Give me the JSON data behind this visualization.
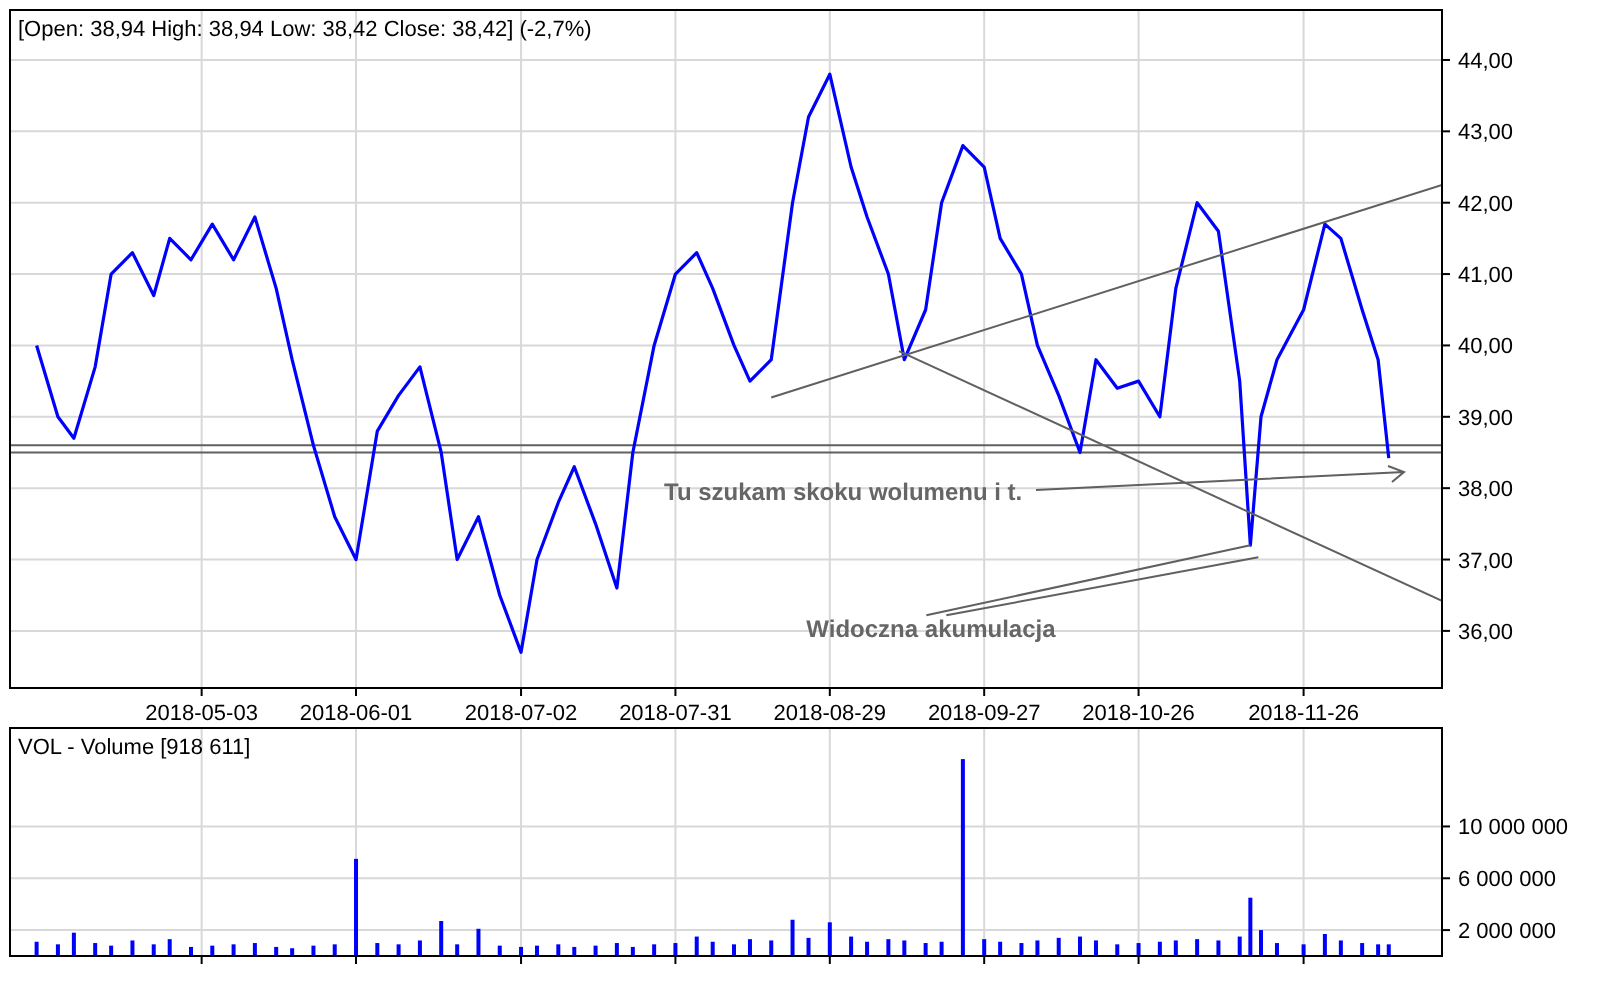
{
  "chart_data": [
    {
      "type": "line",
      "title": "[Open: 38,94  High: 38,94  Low: 38,42  Close: 38,42] (-2,7%)",
      "xlim": [
        "2018-03-28",
        "2018-12-22"
      ],
      "ylim": [
        35.2,
        44.7
      ],
      "xticks": [
        "2018-05-03",
        "2018-06-01",
        "2018-07-02",
        "2018-07-31",
        "2018-08-29",
        "2018-09-27",
        "2018-10-26",
        "2018-11-26"
      ],
      "yticks": [
        {
          "value": 36,
          "label": "36,00"
        },
        {
          "value": 37,
          "label": "37,00"
        },
        {
          "value": 38,
          "label": "38,00"
        },
        {
          "value": 39,
          "label": "39,00"
        },
        {
          "value": 40,
          "label": "40,00"
        },
        {
          "value": 41,
          "label": "41,00"
        },
        {
          "value": 42,
          "label": "42,00"
        },
        {
          "value": 43,
          "label": "43,00"
        },
        {
          "value": 44,
          "label": "44,00"
        }
      ],
      "grid": true,
      "series": [
        {
          "color": "#0000ff",
          "x": [
            "2018-04-02",
            "2018-04-06",
            "2018-04-09",
            "2018-04-13",
            "2018-04-16",
            "2018-04-20",
            "2018-04-24",
            "2018-04-27",
            "2018-05-01",
            "2018-05-05",
            "2018-05-09",
            "2018-05-13",
            "2018-05-17",
            "2018-05-20",
            "2018-05-24",
            "2018-05-28",
            "2018-06-01",
            "2018-06-05",
            "2018-06-09",
            "2018-06-13",
            "2018-06-17",
            "2018-06-20",
            "2018-06-24",
            "2018-06-28",
            "2018-07-02",
            "2018-07-05",
            "2018-07-09",
            "2018-07-12",
            "2018-07-16",
            "2018-07-20",
            "2018-07-23",
            "2018-07-27",
            "2018-07-31",
            "2018-08-04",
            "2018-08-07",
            "2018-08-11",
            "2018-08-14",
            "2018-08-18",
            "2018-08-22",
            "2018-08-25",
            "2018-08-29",
            "2018-09-02",
            "2018-09-05",
            "2018-09-09",
            "2018-09-12",
            "2018-09-16",
            "2018-09-19",
            "2018-09-23",
            "2018-09-27",
            "2018-09-30",
            "2018-10-04",
            "2018-10-07",
            "2018-10-11",
            "2018-10-15",
            "2018-10-18",
            "2018-10-22",
            "2018-10-26",
            "2018-10-30",
            "2018-11-02",
            "2018-11-06",
            "2018-11-10",
            "2018-11-14",
            "2018-11-16",
            "2018-11-18",
            "2018-11-21",
            "2018-11-26",
            "2018-11-30",
            "2018-12-03",
            "2018-12-07",
            "2018-12-10",
            "2018-12-12"
          ],
          "values": [
            40.0,
            39.0,
            38.7,
            39.7,
            41.0,
            41.3,
            40.7,
            41.5,
            41.2,
            41.7,
            41.2,
            41.8,
            40.8,
            39.8,
            38.6,
            37.6,
            37.0,
            38.8,
            39.3,
            39.7,
            38.5,
            37.0,
            37.6,
            36.5,
            35.7,
            37.0,
            37.8,
            38.3,
            37.5,
            36.6,
            38.5,
            40.0,
            41.0,
            41.3,
            40.8,
            40.0,
            39.5,
            39.8,
            42.0,
            43.2,
            43.8,
            42.5,
            41.8,
            41.0,
            39.8,
            40.5,
            42.0,
            42.8,
            42.5,
            41.5,
            41.0,
            40.0,
            39.3,
            38.5,
            39.8,
            39.4,
            39.5,
            39.0,
            40.8,
            42.0,
            41.6,
            39.5,
            37.2,
            39.0,
            39.8,
            40.5,
            41.7,
            41.5,
            40.5,
            39.8,
            38.42
          ]
        },
        {
          "color": "#606060",
          "x": [
            "2018-08-18",
            "2018-12-22"
          ],
          "values": [
            39.27,
            42.25
          ]
        },
        {
          "color": "#606060",
          "x": [
            "2018-09-11",
            "2018-12-22"
          ],
          "values": [
            39.92,
            36.42
          ]
        }
      ],
      "ref_lines": [
        {
          "axis": "y",
          "value": 38.6,
          "color": "#606060"
        },
        {
          "axis": "y",
          "value": 38.5,
          "color": "#606060"
        }
      ],
      "annotations": [
        "Tu szukam skoku wolumenu i t.",
        {
          "text": "Widoczna akumulacja",
          "x": "2018-11-16",
          "y": 37.2
        }
      ]
    },
    {
      "type": "bar",
      "title": "VOL - Volume [918 611]",
      "xlim": [
        "2018-03-28",
        "2018-12-22"
      ],
      "ylim": [
        0,
        17600000
      ],
      "xticks": [
        {
          "value": "2018-05-03",
          "label": null
        },
        {
          "value": "2018-06-01",
          "label": null
        },
        {
          "value": "2018-07-02",
          "label": null
        },
        {
          "value": "2018-07-31",
          "label": null
        },
        {
          "value": "2018-08-29",
          "label": null
        },
        {
          "value": "2018-09-27",
          "label": null
        },
        {
          "value": "2018-10-26",
          "label": null
        },
        {
          "value": "2018-11-26",
          "label": null
        }
      ],
      "yticks": [
        {
          "value": 2000000,
          "label": "2 000 000"
        },
        {
          "value": 6000000,
          "label": "6 000 000"
        },
        {
          "value": 10000000,
          "label": "10 000 000"
        }
      ],
      "grid": true,
      "tick_labels": "y",
      "series": [
        {
          "color": "#0000ff",
          "x": [
            "2018-04-02",
            "2018-04-06",
            "2018-04-09",
            "2018-04-13",
            "2018-04-16",
            "2018-04-20",
            "2018-04-24",
            "2018-04-27",
            "2018-05-01",
            "2018-05-05",
            "2018-05-09",
            "2018-05-13",
            "2018-05-17",
            "2018-05-20",
            "2018-05-24",
            "2018-05-28",
            "2018-06-01",
            "2018-06-05",
            "2018-06-09",
            "2018-06-13",
            "2018-06-17",
            "2018-06-20",
            "2018-06-24",
            "2018-06-28",
            "2018-07-02",
            "2018-07-05",
            "2018-07-09",
            "2018-07-12",
            "2018-07-16",
            "2018-07-20",
            "2018-07-23",
            "2018-07-27",
            "2018-07-31",
            "2018-08-04",
            "2018-08-07",
            "2018-08-11",
            "2018-08-14",
            "2018-08-18",
            "2018-08-22",
            "2018-08-25",
            "2018-08-29",
            "2018-09-02",
            "2018-09-05",
            "2018-09-09",
            "2018-09-12",
            "2018-09-16",
            "2018-09-19",
            "2018-09-23",
            "2018-09-27",
            "2018-09-30",
            "2018-10-04",
            "2018-10-07",
            "2018-10-11",
            "2018-10-15",
            "2018-10-18",
            "2018-10-22",
            "2018-10-26",
            "2018-10-30",
            "2018-11-02",
            "2018-11-06",
            "2018-11-10",
            "2018-11-14",
            "2018-11-16",
            "2018-11-18",
            "2018-11-21",
            "2018-11-26",
            "2018-11-30",
            "2018-12-03",
            "2018-12-07",
            "2018-12-10",
            "2018-12-12"
          ],
          "values": [
            1100000,
            900000,
            1800000,
            1000000,
            800000,
            1200000,
            900000,
            1300000,
            700000,
            800000,
            900000,
            1000000,
            700000,
            600000,
            800000,
            900000,
            7500000,
            1000000,
            900000,
            1200000,
            2700000,
            900000,
            2100000,
            800000,
            700000,
            800000,
            900000,
            700000,
            800000,
            1000000,
            700000,
            900000,
            1000000,
            1500000,
            1100000,
            900000,
            1300000,
            1200000,
            2800000,
            1400000,
            2600000,
            1500000,
            1100000,
            1300000,
            1200000,
            1000000,
            1100000,
            15200000,
            1300000,
            1100000,
            1000000,
            1200000,
            1400000,
            1500000,
            1200000,
            900000,
            1000000,
            1100000,
            1200000,
            1300000,
            1200000,
            1500000,
            4500000,
            2000000,
            1000000,
            900000,
            1700000,
            1200000,
            1000000,
            900000,
            900000
          ]
        }
      ]
    }
  ]
}
